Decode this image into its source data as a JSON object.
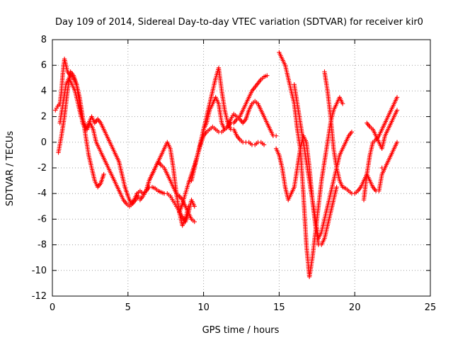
{
  "chart_data": {
    "type": "scatter",
    "title": "Day 109 of 2014, Sidereal Day-to-day VTEC variation (SDTVAR) for receiver kir0",
    "xlabel": "GPS time / hours",
    "ylabel": "SDTVAR / TECUs",
    "xlim": [
      0,
      25
    ],
    "ylim": [
      -12,
      8
    ],
    "x_ticks": [
      "0",
      "5",
      "10",
      "15",
      "20",
      "25"
    ],
    "y_ticks": [
      "8",
      "6",
      "4",
      "2",
      "0",
      "-2",
      "-4",
      "-6",
      "-8",
      "-10",
      "-12"
    ],
    "grid": true,
    "marker": "+",
    "series_color": "#ff0000",
    "series": [
      {
        "x": [
          0.2,
          0.35,
          0.5,
          0.6,
          0.7,
          0.8,
          0.9,
          1.0,
          1.2,
          1.4,
          1.6,
          1.8,
          2.0,
          2.2,
          2.4,
          2.6,
          2.8,
          3.0,
          3.2,
          3.4
        ],
        "y": [
          2.5,
          2.8,
          3.0,
          4.0,
          5.5,
          6.5,
          6.0,
          5.5,
          5.2,
          5.0,
          4.5,
          3.5,
          2.0,
          0.5,
          -1.0,
          -2.0,
          -3.0,
          -3.5,
          -3.2,
          -2.5
        ]
      },
      {
        "x": [
          0.4,
          0.6,
          0.8,
          1.0,
          1.2,
          1.4,
          1.6,
          1.8,
          2.0,
          2.2,
          2.4,
          2.6,
          2.8,
          3.0,
          3.2,
          3.4,
          3.6,
          3.8,
          4.0,
          4.2,
          4.4,
          4.6,
          4.8,
          5.0,
          5.2,
          5.4,
          5.6
        ],
        "y": [
          -0.8,
          0.5,
          2.0,
          4.0,
          5.5,
          5.2,
          4.5,
          3.0,
          1.5,
          1.0,
          1.5,
          2.0,
          1.5,
          1.8,
          1.5,
          1.0,
          0.5,
          0.0,
          -0.5,
          -1.0,
          -1.5,
          -2.5,
          -3.5,
          -4.2,
          -4.8,
          -4.5,
          -4.0
        ]
      },
      {
        "x": [
          0.5,
          0.7,
          0.9,
          1.1,
          1.3,
          1.5,
          1.7,
          1.9,
          2.1,
          2.3,
          2.5,
          2.7,
          2.9,
          3.1,
          3.3,
          3.5,
          3.7,
          3.9,
          4.1,
          4.3,
          4.5,
          4.7,
          4.9,
          5.1,
          5.3,
          5.5,
          5.7
        ],
        "y": [
          1.5,
          3.0,
          4.5,
          5.0,
          4.5,
          4.0,
          3.0,
          2.0,
          1.5,
          1.0,
          1.5,
          1.0,
          0.0,
          -0.5,
          -1.0,
          -1.5,
          -2.0,
          -2.5,
          -3.0,
          -3.5,
          -4.0,
          -4.5,
          -4.8,
          -5.0,
          -4.8,
          -4.5,
          -4.2
        ]
      },
      {
        "x": [
          5.6,
          5.8,
          6.0,
          6.2,
          6.4,
          6.6,
          6.8,
          7.0,
          7.2,
          7.4,
          7.6,
          7.8,
          8.0,
          8.2,
          8.4,
          8.6,
          8.8,
          9.0,
          9.2,
          9.4
        ],
        "y": [
          -4.0,
          -3.8,
          -4.0,
          -3.8,
          -3.0,
          -2.5,
          -2.0,
          -1.5,
          -1.8,
          -2.0,
          -2.5,
          -3.0,
          -3.5,
          -4.0,
          -4.2,
          -4.5,
          -5.0,
          -5.5,
          -6.0,
          -6.2
        ]
      },
      {
        "x": [
          5.8,
          6.0,
          6.2,
          6.4,
          6.6,
          6.8,
          7.0,
          7.2,
          7.4,
          7.6,
          7.8,
          8.0,
          8.2,
          8.4,
          8.6,
          8.8,
          9.0,
          9.2,
          9.4
        ],
        "y": [
          -4.5,
          -4.2,
          -3.8,
          -3.5,
          -3.5,
          -3.6,
          -3.8,
          -3.9,
          -4.0,
          -4.0,
          -4.2,
          -4.6,
          -5.0,
          -5.4,
          -5.8,
          -6.2,
          -5.5,
          -4.5,
          -5.0
        ]
      },
      {
        "x": [
          6.2,
          6.4,
          6.6,
          6.8,
          7.0,
          7.2,
          7.4,
          7.6,
          7.8,
          8.0,
          8.2,
          8.4,
          8.6,
          8.8,
          9.0
        ],
        "y": [
          -3.8,
          -3.0,
          -2.5,
          -2.0,
          -1.5,
          -1.0,
          -0.5,
          0.0,
          -0.5,
          -2.0,
          -4.0,
          -5.5,
          -6.5,
          -6.0,
          -5.0
        ]
      },
      {
        "x": [
          8.4,
          8.6,
          8.8,
          9.0,
          9.2,
          9.4,
          9.6,
          9.8,
          10.0,
          10.2,
          10.4,
          10.6,
          10.8,
          11.0,
          11.2,
          11.4,
          11.6,
          11.8,
          12.0,
          12.2,
          12.4,
          12.6,
          12.8,
          13.0,
          13.2,
          13.4,
          13.6,
          13.8,
          14.0,
          14.2
        ],
        "y": [
          -5.5,
          -4.8,
          -4.0,
          -3.2,
          -2.5,
          -1.8,
          -1.0,
          -0.2,
          0.5,
          0.8,
          1.0,
          1.2,
          1.0,
          0.8,
          0.8,
          1.0,
          1.2,
          1.5,
          1.5,
          1.8,
          2.0,
          2.5,
          3.0,
          3.5,
          4.0,
          4.3,
          4.6,
          4.9,
          5.1,
          5.2
        ]
      },
      {
        "x": [
          9.2,
          9.4,
          9.6,
          9.8,
          10.0,
          10.2,
          10.4,
          10.6,
          10.8,
          11.0,
          11.2,
          11.4,
          11.6,
          11.8,
          12.0,
          12.2,
          12.4,
          12.6,
          12.8,
          13.0,
          13.2,
          13.4,
          13.6,
          13.8,
          14.0
        ],
        "y": [
          -3.0,
          -2.0,
          -1.0,
          0.0,
          1.0,
          2.0,
          3.0,
          4.0,
          5.0,
          5.8,
          4.0,
          2.5,
          1.5,
          1.0,
          1.0,
          0.5,
          0.2,
          0.0,
          0.0,
          0.0,
          -0.2,
          -0.2,
          0.0,
          0.0,
          -0.2
        ]
      },
      {
        "x": [
          10.0,
          10.2,
          10.4,
          10.6,
          10.8,
          11.0,
          11.2,
          11.4,
          11.6,
          11.8,
          12.0,
          12.2,
          12.4,
          12.6,
          12.8,
          13.0,
          13.2,
          13.4,
          13.6,
          13.8,
          14.0,
          14.2,
          14.4,
          14.6,
          14.8
        ],
        "y": [
          1.0,
          1.5,
          2.5,
          3.0,
          3.5,
          3.0,
          1.5,
          1.0,
          1.2,
          1.8,
          2.2,
          2.0,
          1.8,
          1.5,
          1.8,
          2.5,
          3.0,
          3.2,
          3.0,
          2.5,
          2.0,
          1.5,
          1.0,
          0.5,
          0.5
        ]
      },
      {
        "x": [
          15.0,
          15.2,
          15.4,
          15.6,
          15.8,
          16.0,
          16.2,
          16.4,
          16.6,
          16.8,
          17.0,
          17.2,
          17.4,
          17.6,
          17.8,
          18.0,
          18.2,
          18.4,
          18.6,
          18.8,
          19.0,
          19.2
        ],
        "y": [
          7.0,
          6.5,
          6.0,
          5.0,
          4.0,
          3.0,
          1.0,
          -0.5,
          -4.0,
          -8.0,
          -10.5,
          -9.0,
          -7.0,
          -5.0,
          -3.0,
          -1.5,
          0.0,
          1.5,
          2.5,
          3.0,
          3.5,
          3.0
        ]
      },
      {
        "x": [
          14.8,
          15.0,
          15.2,
          15.4,
          15.6,
          15.8,
          16.0,
          16.2,
          16.4,
          16.6,
          16.8,
          17.0,
          17.2,
          17.4,
          17.6,
          17.8,
          18.0,
          18.2,
          18.4,
          18.6,
          18.8
        ],
        "y": [
          -0.5,
          -1.0,
          -2.0,
          -3.5,
          -4.5,
          -4.0,
          -3.5,
          -2.0,
          -0.5,
          0.5,
          0.0,
          -2.0,
          -4.5,
          -6.5,
          -8.0,
          -8.0,
          -7.5,
          -6.5,
          -5.5,
          -4.5,
          -3.5
        ]
      },
      {
        "x": [
          16.0,
          16.2,
          16.4,
          16.6,
          16.8,
          17.0,
          17.2,
          17.4,
          17.6,
          17.8,
          18.0,
          18.2,
          18.4,
          18.6,
          18.8,
          19.0,
          19.2,
          19.4,
          19.6,
          19.8
        ],
        "y": [
          4.5,
          3.0,
          1.5,
          0.0,
          -1.5,
          -3.0,
          -4.5,
          -6.0,
          -7.5,
          -7.0,
          -6.0,
          -5.0,
          -4.0,
          -3.0,
          -2.0,
          -1.0,
          -0.5,
          0.0,
          0.5,
          0.8
        ]
      },
      {
        "x": [
          18.0,
          18.2,
          18.4,
          18.6,
          18.8,
          19.0,
          19.2,
          19.4,
          19.6,
          19.8,
          20.0,
          20.2,
          20.4,
          20.6,
          20.8,
          21.0,
          21.2,
          21.4,
          21.6,
          21.8,
          22.0
        ],
        "y": [
          5.5,
          4.0,
          2.0,
          -0.5,
          -2.0,
          -3.0,
          -3.5,
          -3.6,
          -3.8,
          -4.0,
          -4.0,
          -3.8,
          -3.5,
          -3.0,
          -2.5,
          -3.0,
          -3.5,
          -3.8,
          -3.8,
          -2.5,
          -2.0
        ]
      },
      {
        "x": [
          20.6,
          20.8,
          21.0,
          21.2,
          21.4,
          21.6,
          21.8,
          22.0,
          22.2,
          22.4,
          22.6,
          22.8
        ],
        "y": [
          -4.5,
          -2.5,
          -1.0,
          0.0,
          0.2,
          0.5,
          1.0,
          1.5,
          2.0,
          2.5,
          3.0,
          3.5
        ]
      },
      {
        "x": [
          20.8,
          21.0,
          21.2,
          21.4,
          21.6,
          21.8,
          22.0,
          22.2,
          22.4,
          22.6,
          22.8
        ],
        "y": [
          1.5,
          1.2,
          1.0,
          0.5,
          0.0,
          -0.5,
          0.5,
          1.0,
          1.5,
          2.0,
          2.5
        ]
      },
      {
        "x": [
          21.8,
          22.0,
          22.2,
          22.4,
          22.6,
          22.8
        ],
        "y": [
          -2.0,
          -2.0,
          -1.5,
          -1.0,
          -0.5,
          0.0
        ]
      }
    ]
  }
}
